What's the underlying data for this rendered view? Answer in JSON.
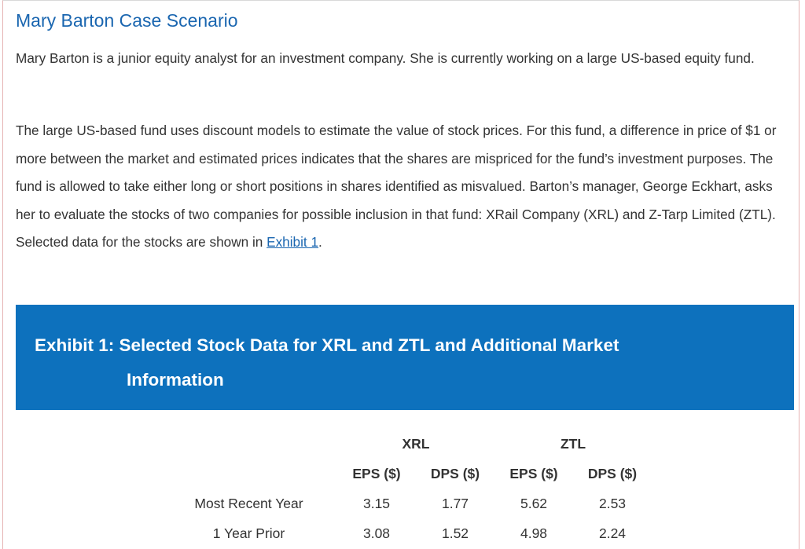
{
  "title": "Mary Barton Case Scenario",
  "paragraph1": "Mary Barton is a junior equity analyst for an investment company. She is currently working on a large US-based equity fund.",
  "paragraph2_text": "The large US-based fund uses discount models to estimate the value of stock prices. For this fund, a difference in price of $1 or more between the market and estimated prices indicates that the shares are mispriced for the fund’s investment purposes. The fund is allowed to take either long or short positions in shares identified as misvalued. Barton’s manager, George Eckhart, asks her to evaluate the stocks of two companies for possible inclusion in that fund: XRail Company (XRL) and Z-Tarp Limited (ZTL). Selected data for the stocks are shown in ",
  "paragraph2_link": "Exhibit 1",
  "paragraph2_end": ".",
  "exhibit": {
    "title_line1": "Exhibit 1: Selected Stock Data for XRL and ZTL and Additional Market",
    "title_line2": "Information",
    "header_color": "#0d71bd"
  },
  "table": {
    "groups": [
      "XRL",
      "ZTL"
    ],
    "columns": [
      "EPS ($)",
      "DPS ($)",
      "EPS ($)",
      "DPS ($)"
    ],
    "rows": [
      {
        "label": "Most Recent Year",
        "values": [
          "3.15",
          "1.77",
          "5.62",
          "2.53"
        ]
      },
      {
        "label": "1 Year Prior",
        "values": [
          "3.08",
          "1.52",
          "4.98",
          "2.24"
        ]
      }
    ]
  }
}
